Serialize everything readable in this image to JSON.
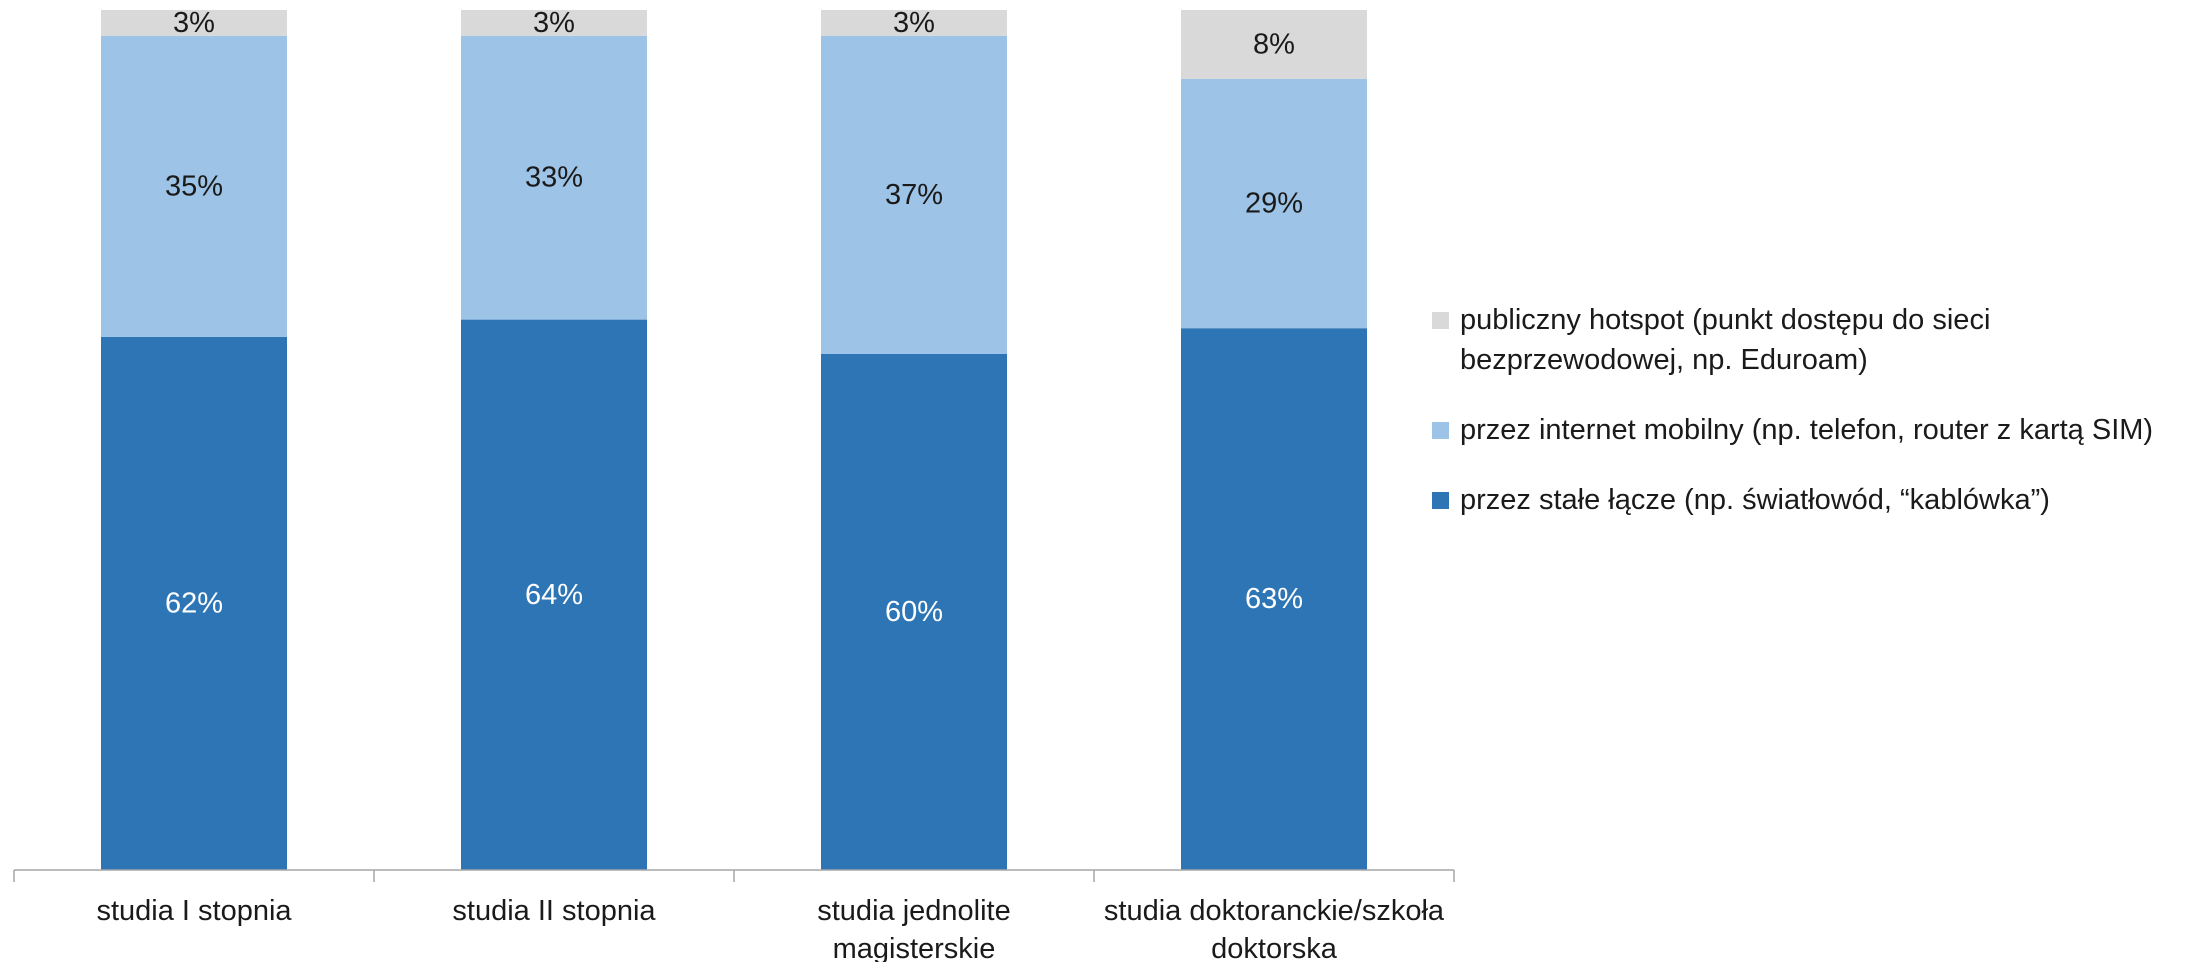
{
  "chart_data": {
    "type": "bar",
    "stacked": true,
    "categories": [
      "studia I stopnia",
      "studia II stopnia",
      "studia jednolite magisterskie",
      "studia doktoranckie/szkoła doktorska"
    ],
    "category_lines": [
      [
        "studia I stopnia"
      ],
      [
        "studia II stopnia"
      ],
      [
        "studia jednolite",
        "magisterskie"
      ],
      [
        "studia doktoranckie/szkoła",
        "doktorska"
      ]
    ],
    "series": [
      {
        "name": "przez stałe łącze (np. światłowód, “kablówka”)",
        "values": [
          62,
          64,
          60,
          63
        ],
        "color": "#2e75b6",
        "label_color": "#ffffff"
      },
      {
        "name": "przez internet mobilny (np. telefon, router z kartą SIM)",
        "values": [
          35,
          33,
          37,
          29
        ],
        "color": "#9dc3e6",
        "label_color": "#1a1a1a"
      },
      {
        "name": "publiczny hotspot (punkt dostępu do sieci bezprzewodowej, np. Eduroam)",
        "values": [
          3,
          3,
          3,
          8
        ],
        "color": "#d9d9d9",
        "label_color": "#1a1a1a"
      }
    ],
    "value_suffix": "%",
    "ylim": [
      0,
      100
    ],
    "legend_position": "right",
    "legend_order": [
      2,
      1,
      0
    ],
    "grid": false
  }
}
